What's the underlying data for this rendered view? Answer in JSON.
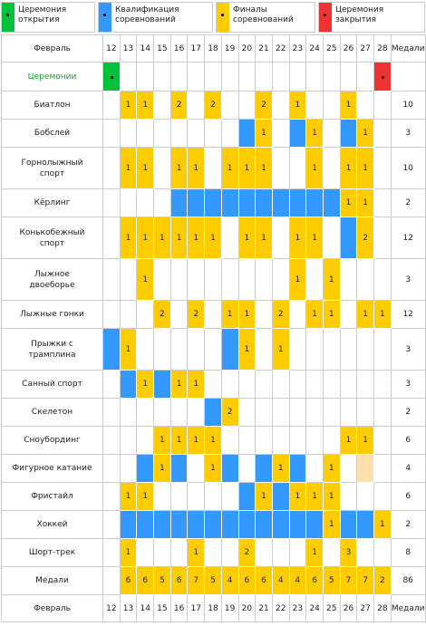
{
  "legend": [
    {
      "kind": "opening",
      "lines": [
        "Церемония",
        "открытия"
      ]
    },
    {
      "kind": "qualification",
      "lines": [
        "Квалификация",
        "соревнований"
      ]
    },
    {
      "kind": "final",
      "lines": [
        "Финалы",
        "соревнований"
      ]
    },
    {
      "kind": "closing",
      "lines": [
        "Церемония",
        "закрытия"
      ]
    }
  ],
  "colors": {
    "opening": "#00c23a",
    "qualification": "#3399ff",
    "final": "#ffcc00",
    "closing": "#ee3333",
    "tbd": "#ffdead"
  },
  "header": {
    "month": "Февраль",
    "days": [
      12,
      13,
      14,
      15,
      16,
      17,
      18,
      19,
      20,
      21,
      22,
      23,
      24,
      25,
      26,
      27,
      28
    ],
    "medals": "Медали"
  },
  "ceremonies": {
    "label": "Церемонии",
    "cells": [
      "opening",
      null,
      null,
      null,
      null,
      null,
      null,
      null,
      null,
      null,
      null,
      null,
      null,
      null,
      null,
      null,
      "closing"
    ]
  },
  "rows": [
    {
      "lines": [
        "Биатлон"
      ],
      "cells": [
        null,
        1,
        1,
        null,
        2,
        null,
        2,
        null,
        null,
        2,
        null,
        1,
        null,
        null,
        1,
        null,
        null
      ],
      "medals": 10
    },
    {
      "lines": [
        "Бобслей"
      ],
      "cells": [
        null,
        null,
        null,
        null,
        null,
        null,
        null,
        null,
        "qualification",
        1,
        null,
        "qualification",
        1,
        null,
        "qualification",
        1,
        null
      ],
      "medals": 3
    },
    {
      "lines": [
        "Горнолыжный",
        "спорт"
      ],
      "cells": [
        null,
        1,
        1,
        null,
        1,
        1,
        null,
        1,
        1,
        1,
        null,
        null,
        1,
        null,
        1,
        1,
        null
      ],
      "medals": 10
    },
    {
      "lines": [
        "Кёрлинг"
      ],
      "cells": [
        null,
        null,
        null,
        null,
        "qualification",
        "qualification",
        "qualification",
        "qualification",
        "qualification",
        "qualification",
        "qualification",
        "qualification",
        "qualification",
        "qualification",
        1,
        1,
        null
      ],
      "medals": 2
    },
    {
      "lines": [
        "Конькобежный",
        "спорт"
      ],
      "cells": [
        null,
        1,
        1,
        1,
        1,
        1,
        1,
        null,
        1,
        1,
        null,
        1,
        1,
        null,
        "qualification",
        2,
        null
      ],
      "medals": 12
    },
    {
      "lines": [
        "Лыжное",
        "двоеборье"
      ],
      "cells": [
        null,
        null,
        1,
        null,
        null,
        null,
        null,
        null,
        null,
        null,
        null,
        1,
        null,
        1,
        null,
        null,
        null
      ],
      "medals": 3
    },
    {
      "lines": [
        "Лыжные гонки"
      ],
      "cells": [
        null,
        null,
        null,
        2,
        null,
        2,
        null,
        1,
        1,
        null,
        2,
        null,
        1,
        1,
        null,
        1,
        1
      ],
      "medals": 12
    },
    {
      "lines": [
        "Прыжки с",
        "трамплина"
      ],
      "cells": [
        "qualification",
        1,
        null,
        null,
        null,
        null,
        null,
        "qualification",
        1,
        null,
        1,
        null,
        null,
        null,
        null,
        null,
        null
      ],
      "medals": 3
    },
    {
      "lines": [
        "Санный спорт"
      ],
      "cells": [
        null,
        "qualification",
        1,
        "qualification",
        1,
        1,
        null,
        null,
        null,
        null,
        null,
        null,
        null,
        null,
        null,
        null,
        null
      ],
      "medals": 3
    },
    {
      "lines": [
        "Скелетон"
      ],
      "cells": [
        null,
        null,
        null,
        null,
        null,
        null,
        "qualification",
        2,
        null,
        null,
        null,
        null,
        null,
        null,
        null,
        null,
        null
      ],
      "medals": 2
    },
    {
      "lines": [
        "Сноубординг"
      ],
      "cells": [
        null,
        null,
        null,
        1,
        1,
        1,
        1,
        null,
        null,
        null,
        null,
        null,
        null,
        null,
        1,
        1,
        null
      ],
      "medals": 6
    },
    {
      "lines": [
        "Фигурное катание"
      ],
      "cells": [
        null,
        null,
        "qualification",
        1,
        "qualification",
        null,
        1,
        "qualification",
        null,
        "qualification",
        1,
        "qualification",
        null,
        1,
        null,
        "tbd",
        null
      ],
      "medals": 4
    },
    {
      "lines": [
        "Фристайл"
      ],
      "cells": [
        null,
        1,
        1,
        null,
        null,
        null,
        null,
        null,
        "qualification",
        1,
        "qualification",
        1,
        1,
        1,
        null,
        null,
        null
      ],
      "medals": 6
    },
    {
      "lines": [
        "Хоккей"
      ],
      "cells": [
        null,
        "qualification",
        "qualification",
        "qualification",
        "qualification",
        "qualification",
        "qualification",
        "qualification",
        "qualification",
        "qualification",
        "qualification",
        "qualification",
        "qualification",
        1,
        "qualification",
        "qualification",
        1
      ],
      "medals": 2
    },
    {
      "lines": [
        "Шорт-трек"
      ],
      "cells": [
        null,
        1,
        null,
        null,
        null,
        1,
        null,
        null,
        2,
        null,
        null,
        null,
        1,
        null,
        3,
        null,
        null
      ],
      "medals": 8
    }
  ],
  "totals": {
    "label": "Медали",
    "cells": [
      null,
      6,
      6,
      5,
      6,
      7,
      5,
      4,
      6,
      6,
      4,
      4,
      6,
      5,
      7,
      7,
      2
    ],
    "total": 86
  }
}
